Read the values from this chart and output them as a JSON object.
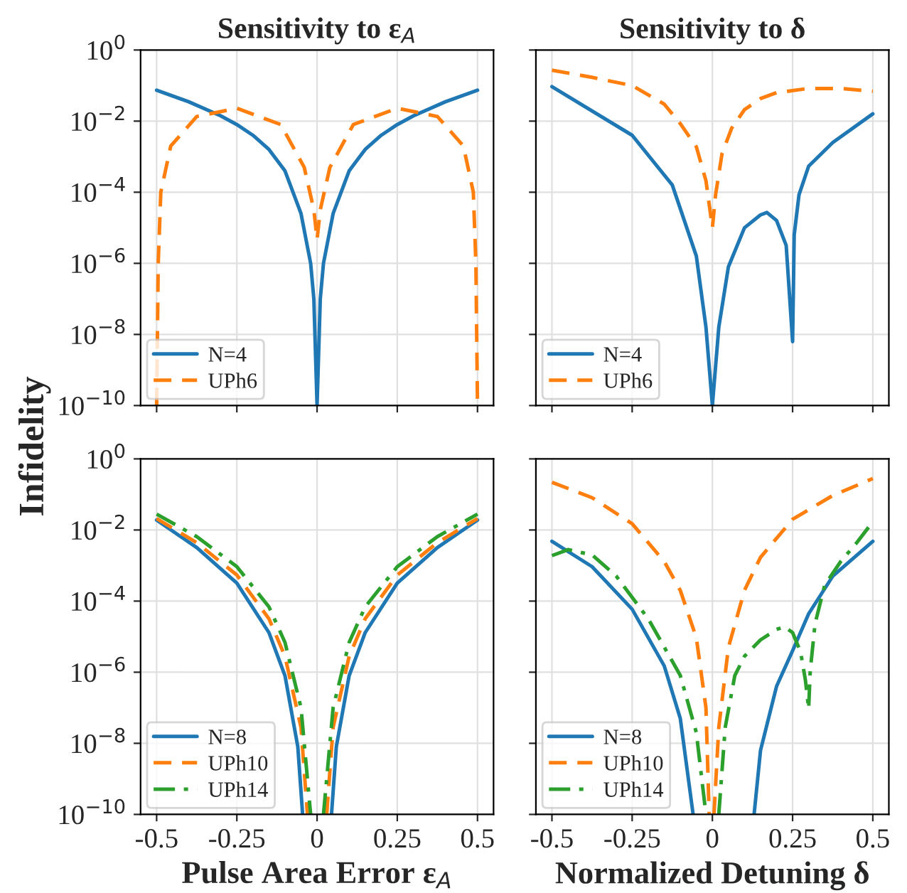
{
  "chart_data": [
    {
      "type": "line",
      "title": "Sensitivity to ε$_{A}$",
      "ylabel": "Infidelity",
      "xlim": [
        -0.55,
        0.55
      ],
      "ylim": [
        1e-10,
        1
      ],
      "log": "y",
      "grid": true,
      "legend": "bottom left",
      "tick_labels": "y",
      "xticks": [
        -0.5,
        -0.25,
        0,
        0.25,
        0.5
      ],
      "yticks": [
        {
          "value": 1e-10,
          "label": "10$^{−10}$"
        },
        {
          "value": 1e-08,
          "label": "10$^{−8}$"
        },
        {
          "value": 1e-06,
          "label": "10$^{−6}$"
        },
        {
          "value": 0.0001,
          "label": "10$^{−4}$"
        },
        {
          "value": 0.01,
          "label": "10$^{−2}$"
        },
        {
          "value": 1,
          "label": "10$^{0}$"
        }
      ],
      "series": [
        {
          "name": "N=4",
          "color": "#1f77b4",
          "line_style": "solid",
          "x": [
            -0.5,
            -0.4,
            -0.3,
            -0.25,
            -0.2,
            -0.15,
            -0.1,
            -0.05,
            -0.02,
            -0.01,
            0,
            0.01,
            0.02,
            0.05,
            0.1,
            0.15,
            0.2,
            0.25,
            0.3,
            0.4,
            0.5
          ],
          "values": [
            0.074,
            0.035,
            0.014,
            0.008,
            0.004,
            0.0016,
            0.0004,
            2.5e-05,
            1e-06,
            1e-07,
            1e-10,
            1e-07,
            1e-06,
            2.5e-05,
            0.0004,
            0.0016,
            0.004,
            0.008,
            0.014,
            0.035,
            0.074
          ]
        },
        {
          "name": "UPh6",
          "color": "#ff7f0e",
          "line_style": "dashed",
          "x": [
            -0.5,
            -0.495,
            -0.487,
            -0.456,
            -0.375,
            -0.25,
            -0.113,
            -0.04,
            -0.01,
            0,
            0.01,
            0.04,
            0.113,
            0.25,
            0.375,
            0.456,
            0.487,
            0.495,
            0.5
          ],
          "values": [
            1e-10,
            1e-06,
            0.0001,
            0.002,
            0.0135,
            0.023,
            0.008,
            0.0005,
            3.2e-05,
            4.7e-06,
            3.2e-05,
            0.0005,
            0.008,
            0.023,
            0.0135,
            0.002,
            0.0001,
            1e-06,
            1e-10
          ]
        }
      ]
    },
    {
      "type": "line",
      "title": "Sensitivity to δ",
      "xlim": [
        -0.55,
        0.55
      ],
      "ylim": [
        1e-10,
        1
      ],
      "log": "y",
      "grid": true,
      "legend": "bottom left",
      "tick_labels": false,
      "xticks": [
        -0.5,
        -0.25,
        0,
        0.25,
        0.5
      ],
      "yticks": [
        1e-10,
        1e-08,
        1e-06,
        0.0001,
        0.01,
        1
      ],
      "series": [
        {
          "name": "N=4",
          "color": "#1f77b4",
          "line_style": "solid",
          "x": [
            -0.5,
            -0.25,
            -0.125,
            -0.05,
            -0.02,
            0,
            0.02,
            0.05,
            0.1,
            0.15,
            0.17,
            0.2,
            0.23,
            0.25,
            0.255,
            0.27,
            0.3,
            0.375,
            0.5
          ],
          "values": [
            0.093,
            0.004,
            0.00016,
            1.6e-06,
            1.6e-08,
            1e-10,
            1.6e-08,
            8e-07,
            1e-05,
            2.3e-05,
            2.7e-05,
            1.6e-05,
            3.2e-06,
            6.3e-09,
            6.3e-06,
            8.5e-05,
            0.00054,
            0.0025,
            0.016
          ]
        },
        {
          "name": "UPh6",
          "color": "#ff7f0e",
          "line_style": "dashed",
          "x": [
            -0.5,
            -0.375,
            -0.25,
            -0.15,
            -0.1,
            -0.05,
            -0.02,
            0,
            0.01,
            0.03,
            0.06,
            0.1,
            0.15,
            0.2,
            0.3,
            0.4,
            0.5
          ],
          "values": [
            0.27,
            0.17,
            0.1,
            0.03,
            0.0085,
            0.0019,
            0.00021,
            1e-05,
            8.5e-05,
            0.0012,
            0.0063,
            0.021,
            0.043,
            0.063,
            0.083,
            0.083,
            0.069
          ]
        }
      ]
    },
    {
      "type": "line",
      "xlabel": "Pulse Area Error ε$_{A}$",
      "xlim": [
        -0.55,
        0.55
      ],
      "ylim": [
        1e-10,
        1
      ],
      "log": "y",
      "grid": true,
      "legend": "bottom left",
      "xticks": [
        {
          "value": -0.5,
          "label": "-0.5"
        },
        {
          "value": -0.25,
          "label": "-0.25"
        },
        {
          "value": 0,
          "label": "0"
        },
        {
          "value": 0.25,
          "label": "0.25"
        },
        {
          "value": 0.5,
          "label": "0.5"
        }
      ],
      "yticks": [
        {
          "value": 1e-10,
          "label": "10$^{−10}$"
        },
        {
          "value": 1e-08,
          "label": "10$^{−8}$"
        },
        {
          "value": 1e-06,
          "label": "10$^{−6}$"
        },
        {
          "value": 0.0001,
          "label": "10$^{−4}$"
        },
        {
          "value": 0.01,
          "label": "10$^{−2}$"
        },
        {
          "value": 1,
          "label": "10$^{0}$"
        }
      ],
      "series": [
        {
          "name": "N=8",
          "color": "#1f77b4",
          "line_style": "solid",
          "x": [
            -0.5,
            -0.375,
            -0.25,
            -0.15,
            -0.1,
            -0.06,
            -0.045,
            0,
            0.045,
            0.06,
            0.1,
            0.15,
            0.25,
            0.375,
            0.5
          ],
          "values": [
            0.019,
            0.0032,
            0.00032,
            1.3e-05,
            8e-07,
            8e-09,
            1e-10,
            null,
            1e-10,
            8e-09,
            8e-07,
            1.3e-05,
            0.00032,
            0.0032,
            0.019
          ]
        },
        {
          "name": "UPh10",
          "color": "#ff7f0e",
          "line_style": "dashed",
          "x": [
            -0.5,
            -0.375,
            -0.25,
            -0.15,
            -0.1,
            -0.05,
            -0.03,
            0,
            0.03,
            0.05,
            0.1,
            0.15,
            0.25,
            0.375,
            0.5
          ],
          "values": [
            0.021,
            0.0044,
            0.00054,
            3.2e-05,
            2.8e-06,
            2.8e-08,
            1e-10,
            null,
            1e-10,
            2.8e-08,
            2.8e-06,
            3.2e-05,
            0.00054,
            0.0044,
            0.021
          ]
        },
        {
          "name": "UPh14",
          "color": "#2ca02c",
          "line_style": "dashdot",
          "x": [
            -0.5,
            -0.375,
            -0.25,
            -0.15,
            -0.1,
            -0.05,
            -0.02,
            0,
            0.02,
            0.05,
            0.1,
            0.15,
            0.25,
            0.375,
            0.5
          ],
          "values": [
            0.028,
            0.0065,
            0.00093,
            6.9e-05,
            6.9e-06,
            1e-07,
            1e-10,
            null,
            1e-10,
            1e-07,
            6.9e-06,
            6.9e-05,
            0.00093,
            0.0065,
            0.028
          ]
        }
      ]
    },
    {
      "type": "line",
      "xlabel": "Normalized Detuning δ",
      "xlim": [
        -0.55,
        0.55
      ],
      "ylim": [
        1e-10,
        1
      ],
      "log": "y",
      "grid": true,
      "legend": "bottom left",
      "tick_labels": "x",
      "xticks": [
        {
          "value": -0.5,
          "label": "-0.5"
        },
        {
          "value": -0.25,
          "label": "-0.25"
        },
        {
          "value": 0,
          "label": "0"
        },
        {
          "value": 0.25,
          "label": "0.25"
        },
        {
          "value": 0.5,
          "label": "0.5"
        }
      ],
      "yticks": [
        1e-10,
        1e-08,
        1e-06,
        0.0001,
        0.01,
        1
      ],
      "series": [
        {
          "name": "N=8",
          "color": "#1f77b4",
          "line_style": "solid",
          "x": [
            -0.5,
            -0.375,
            -0.25,
            -0.15,
            -0.1,
            -0.06,
            0,
            0.13,
            0.15,
            0.2,
            0.25,
            0.3,
            0.375,
            0.5
          ],
          "values": [
            0.0048,
            0.00093,
            5.9e-05,
            1.5e-06,
            5e-08,
            1e-10,
            null,
            1e-10,
            6.3e-09,
            4e-07,
            4e-06,
            4.4e-05,
            0.0005,
            0.0048
          ]
        },
        {
          "name": "UPh10",
          "color": "#ff7f0e",
          "line_style": "dashed",
          "x": [
            -0.5,
            -0.375,
            -0.25,
            -0.15,
            -0.1,
            -0.05,
            -0.02,
            -0.01,
            0,
            0.005,
            0.02,
            0.05,
            0.1,
            0.15,
            0.25,
            0.375,
            0.5
          ],
          "values": [
            0.22,
            0.081,
            0.015,
            0.0013,
            0.0002,
            9.3e-06,
            1e-07,
            1e-10,
            null,
            1e-10,
            2.8e-08,
            5e-06,
            0.0002,
            0.0017,
            0.02,
            0.093,
            0.28
          ]
        },
        {
          "name": "UPh14",
          "color": "#2ca02c",
          "line_style": "dashdot",
          "x": [
            -0.5,
            -0.45,
            -0.375,
            -0.3,
            -0.2,
            -0.1,
            -0.05,
            -0.02,
            0,
            0.02,
            0.04,
            0.07,
            0.1,
            0.15,
            0.2,
            0.225,
            0.25,
            0.275,
            0.29,
            0.3,
            0.305,
            0.32,
            0.35,
            0.4,
            0.45,
            0.49
          ],
          "values": [
            0.0019,
            0.0028,
            0.002,
            0.00051,
            3.2e-05,
            8.1e-07,
            2e-08,
            1e-10,
            null,
            1e-10,
            2.8e-08,
            8.1e-07,
            2.8e-06,
            8.1e-06,
            1.6e-05,
            1.9e-05,
            1.3e-05,
            3.7e-06,
            5.9e-07,
            9.3e-08,
            1.1e-06,
            2.3e-05,
            0.00028,
            0.0013,
            0.0044,
            0.013
          ]
        }
      ]
    }
  ]
}
